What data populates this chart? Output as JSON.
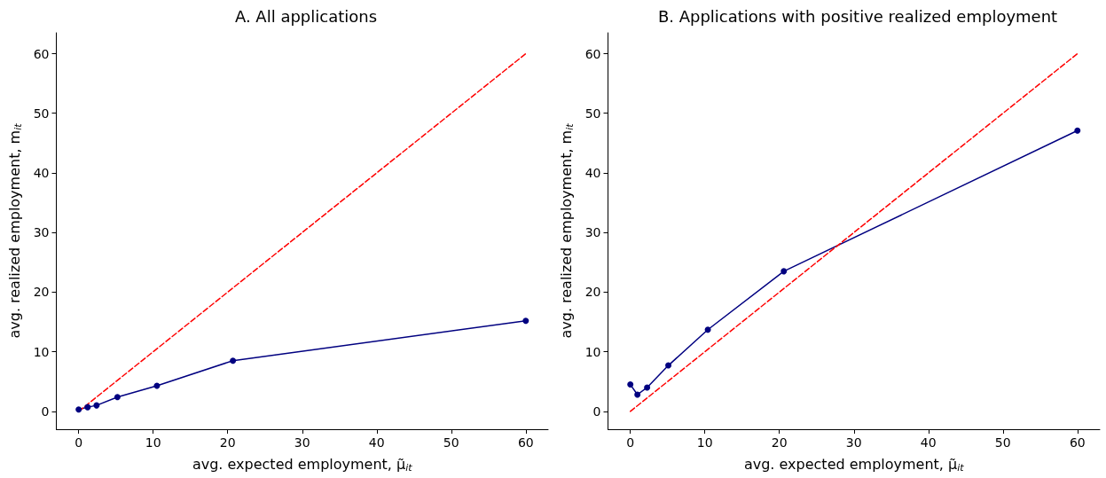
{
  "chart_data": [
    {
      "type": "line",
      "title": "A. All applications",
      "xlabel": "avg. expected employment, μ̃$_{it}$",
      "ylabel": "avg. realized employment, m$_{it}$",
      "xlim": [
        -3,
        63
      ],
      "ylim": [
        -3,
        63.5
      ],
      "xticks": [
        0,
        10,
        20,
        30,
        40,
        50,
        60
      ],
      "yticks": [
        0,
        10,
        20,
        30,
        40,
        50,
        60
      ],
      "grid": false,
      "series": [
        {
          "color": "#000080",
          "marker": "circle",
          "line_style": "solid",
          "x": [
            0,
            1.2,
            2.4,
            5.2,
            10.5,
            20.7,
            60
          ],
          "values": [
            0.3,
            0.7,
            1.0,
            2.4,
            4.3,
            8.5,
            15.2
          ]
        },
        {
          "color": "#ff0000",
          "marker": "none",
          "line_style": "dashed",
          "x": [
            0,
            60
          ],
          "values": [
            0,
            60
          ]
        }
      ]
    },
    {
      "type": "line",
      "title": "B. Applications with positive realized employment",
      "xlabel": "avg. expected employment, μ̃$_{it}$",
      "ylabel": "avg. realized employment, m$_{it}$",
      "xlim": [
        -3,
        63
      ],
      "ylim": [
        -3,
        63.5
      ],
      "xticks": [
        0,
        10,
        20,
        30,
        40,
        50,
        60
      ],
      "yticks": [
        0,
        10,
        20,
        30,
        40,
        50,
        60
      ],
      "grid": false,
      "series": [
        {
          "color": "#000080",
          "marker": "circle",
          "line_style": "solid",
          "x": [
            0,
            0.95,
            2.25,
            5.1,
            10.4,
            20.6,
            60
          ],
          "values": [
            4.5,
            2.8,
            4.0,
            7.7,
            13.7,
            23.5,
            47.1
          ]
        },
        {
          "color": "#ff0000",
          "marker": "none",
          "line_style": "dashed",
          "x": [
            0,
            60
          ],
          "values": [
            0,
            60
          ]
        }
      ]
    }
  ]
}
